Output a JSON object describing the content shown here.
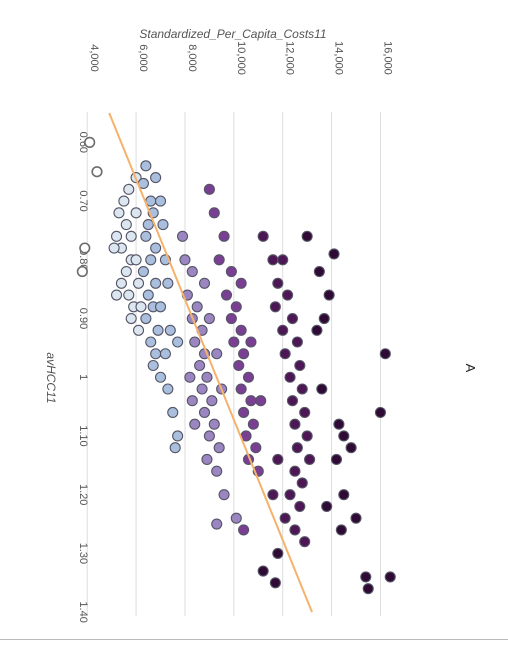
{
  "panel_label": "A",
  "chart_data": {
    "type": "scatter",
    "orientation": "rotated-90-clockwise",
    "title": "Standardized_Per_Capita_Costs11",
    "xlabel": "avHCC11",
    "ylabel": "",
    "x_ticks": [
      "0.60",
      "0.70",
      "0.80",
      "0.90",
      "1",
      "1.10",
      "1.20",
      "1.30",
      "1.40"
    ],
    "y_ticks": [
      "4,000",
      "6,000",
      "8,000",
      "10,000",
      "12,000",
      "14,000",
      "16,000"
    ],
    "xlim": [
      0.55,
      1.41
    ],
    "ylim": [
      3500,
      16800
    ],
    "grid": true,
    "trend_line": {
      "x": [
        0.55,
        1.4
      ],
      "y": [
        4900,
        13200
      ],
      "color": "#f5b26b"
    },
    "colors": {
      "outline_hollow": "#ffffff",
      "light": "#dce6f0",
      "light_blue": "#a9bfdd",
      "lavender": "#9b86c2",
      "purple": "#7a3f93",
      "dark_purple": "#4d1654",
      "darkest": "#2e0a35"
    },
    "series": [
      {
        "points": [
          [
            0.6,
            4100
          ],
          [
            0.65,
            4400
          ],
          [
            0.78,
            3900
          ],
          [
            0.82,
            3800
          ]
        ],
        "fill": "#ffffff"
      },
      {
        "points": [
          [
            0.66,
            6000
          ],
          [
            0.68,
            5700
          ],
          [
            0.7,
            5500
          ],
          [
            0.72,
            5300
          ],
          [
            0.74,
            5600
          ],
          [
            0.76,
            5200
          ],
          [
            0.78,
            5400
          ],
          [
            0.8,
            5800
          ],
          [
            0.82,
            5600
          ],
          [
            0.84,
            5400
          ],
          [
            0.86,
            5700
          ],
          [
            0.88,
            5900
          ],
          [
            0.9,
            5800
          ],
          [
            0.92,
            6100
          ],
          [
            0.72,
            6000
          ],
          [
            0.76,
            5800
          ],
          [
            0.8,
            6000
          ],
          [
            0.84,
            6100
          ],
          [
            0.88,
            6200
          ],
          [
            0.78,
            5100
          ],
          [
            0.86,
            5200
          ]
        ],
        "fill": "#dce6f0"
      },
      {
        "points": [
          [
            0.64,
            6400
          ],
          [
            0.67,
            6300
          ],
          [
            0.7,
            6600
          ],
          [
            0.72,
            6700
          ],
          [
            0.74,
            6500
          ],
          [
            0.76,
            6400
          ],
          [
            0.78,
            6800
          ],
          [
            0.8,
            6600
          ],
          [
            0.82,
            6300
          ],
          [
            0.84,
            6800
          ],
          [
            0.86,
            6500
          ],
          [
            0.88,
            6700
          ],
          [
            0.9,
            6400
          ],
          [
            0.92,
            6900
          ],
          [
            0.94,
            6600
          ],
          [
            0.96,
            6800
          ],
          [
            0.98,
            6700
          ],
          [
            0.7,
            7000
          ],
          [
            0.74,
            7100
          ],
          [
            0.8,
            7200
          ],
          [
            0.84,
            7300
          ],
          [
            0.88,
            7000
          ],
          [
            0.92,
            7400
          ],
          [
            0.96,
            7200
          ],
          [
            1.0,
            7000
          ],
          [
            1.02,
            7300
          ],
          [
            1.06,
            7500
          ],
          [
            1.1,
            7700
          ],
          [
            1.12,
            7600
          ],
          [
            0.66,
            6800
          ],
          [
            0.94,
            7700
          ]
        ],
        "fill": "#a9bfdd"
      },
      {
        "points": [
          [
            0.76,
            7900
          ],
          [
            0.8,
            8000
          ],
          [
            0.82,
            8300
          ],
          [
            0.86,
            8100
          ],
          [
            0.88,
            8500
          ],
          [
            0.9,
            8300
          ],
          [
            0.92,
            8700
          ],
          [
            0.94,
            8400
          ],
          [
            0.96,
            8800
          ],
          [
            0.98,
            8600
          ],
          [
            1.0,
            8900
          ],
          [
            1.02,
            8700
          ],
          [
            1.04,
            9100
          ],
          [
            1.06,
            8800
          ],
          [
            1.08,
            9200
          ],
          [
            1.1,
            9000
          ],
          [
            1.12,
            9400
          ],
          [
            1.14,
            8900
          ],
          [
            1.16,
            9300
          ],
          [
            1.0,
            8200
          ],
          [
            1.04,
            8300
          ],
          [
            1.08,
            8400
          ],
          [
            0.84,
            8800
          ],
          [
            0.9,
            9000
          ],
          [
            0.96,
            9300
          ],
          [
            1.02,
            9500
          ],
          [
            1.2,
            9600
          ],
          [
            1.24,
            10100
          ],
          [
            1.25,
            9300
          ]
        ],
        "fill": "#9b86c2"
      },
      {
        "points": [
          [
            0.72,
            9200
          ],
          [
            0.76,
            9600
          ],
          [
            0.8,
            9400
          ],
          [
            0.82,
            9900
          ],
          [
            0.86,
            9700
          ],
          [
            0.88,
            10100
          ],
          [
            0.9,
            9900
          ],
          [
            0.92,
            10300
          ],
          [
            0.94,
            10000
          ],
          [
            0.96,
            10400
          ],
          [
            0.98,
            10200
          ],
          [
            1.0,
            10600
          ],
          [
            1.02,
            10300
          ],
          [
            1.04,
            10700
          ],
          [
            1.06,
            10400
          ],
          [
            1.08,
            10800
          ],
          [
            1.1,
            10500
          ],
          [
            1.12,
            10900
          ],
          [
            1.14,
            10600
          ],
          [
            1.16,
            11000
          ],
          [
            0.68,
            9000
          ],
          [
            0.84,
            10300
          ],
          [
            0.94,
            10700
          ],
          [
            1.04,
            11100
          ],
          [
            1.26,
            10400
          ]
        ],
        "fill": "#7a3f93"
      },
      {
        "points": [
          [
            0.76,
            11200
          ],
          [
            0.8,
            11600
          ],
          [
            0.84,
            11800
          ],
          [
            0.86,
            12200
          ],
          [
            0.88,
            11700
          ],
          [
            0.9,
            12400
          ],
          [
            0.92,
            12000
          ],
          [
            0.94,
            12600
          ],
          [
            0.96,
            12100
          ],
          [
            0.98,
            12700
          ],
          [
            1.0,
            12300
          ],
          [
            1.02,
            12800
          ],
          [
            1.04,
            12400
          ],
          [
            1.06,
            12900
          ],
          [
            1.08,
            12500
          ],
          [
            1.1,
            13000
          ],
          [
            1.12,
            12600
          ],
          [
            1.14,
            13100
          ],
          [
            1.16,
            12500
          ],
          [
            1.18,
            12800
          ],
          [
            1.2,
            12300
          ],
          [
            1.22,
            12700
          ],
          [
            1.24,
            12100
          ],
          [
            1.26,
            12500
          ],
          [
            1.28,
            12900
          ],
          [
            1.2,
            11600
          ],
          [
            1.14,
            11800
          ],
          [
            0.8,
            12000
          ]
        ],
        "fill": "#4d1654"
      },
      {
        "points": [
          [
            0.76,
            13000
          ],
          [
            0.79,
            14100
          ],
          [
            0.82,
            13500
          ],
          [
            0.86,
            13900
          ],
          [
            0.9,
            13700
          ],
          [
            0.92,
            13400
          ],
          [
            0.96,
            16200
          ],
          [
            1.02,
            13600
          ],
          [
            1.06,
            16000
          ],
          [
            1.08,
            14300
          ],
          [
            1.1,
            14500
          ],
          [
            1.12,
            14800
          ],
          [
            1.14,
            14200
          ],
          [
            1.2,
            14500
          ],
          [
            1.22,
            13800
          ],
          [
            1.24,
            15000
          ],
          [
            1.26,
            14400
          ],
          [
            1.3,
            11800
          ],
          [
            1.33,
            11200
          ],
          [
            1.35,
            11700
          ],
          [
            1.34,
            16400
          ],
          [
            1.34,
            15400
          ],
          [
            1.36,
            15500
          ]
        ],
        "fill": "#2e0a35"
      }
    ]
  }
}
